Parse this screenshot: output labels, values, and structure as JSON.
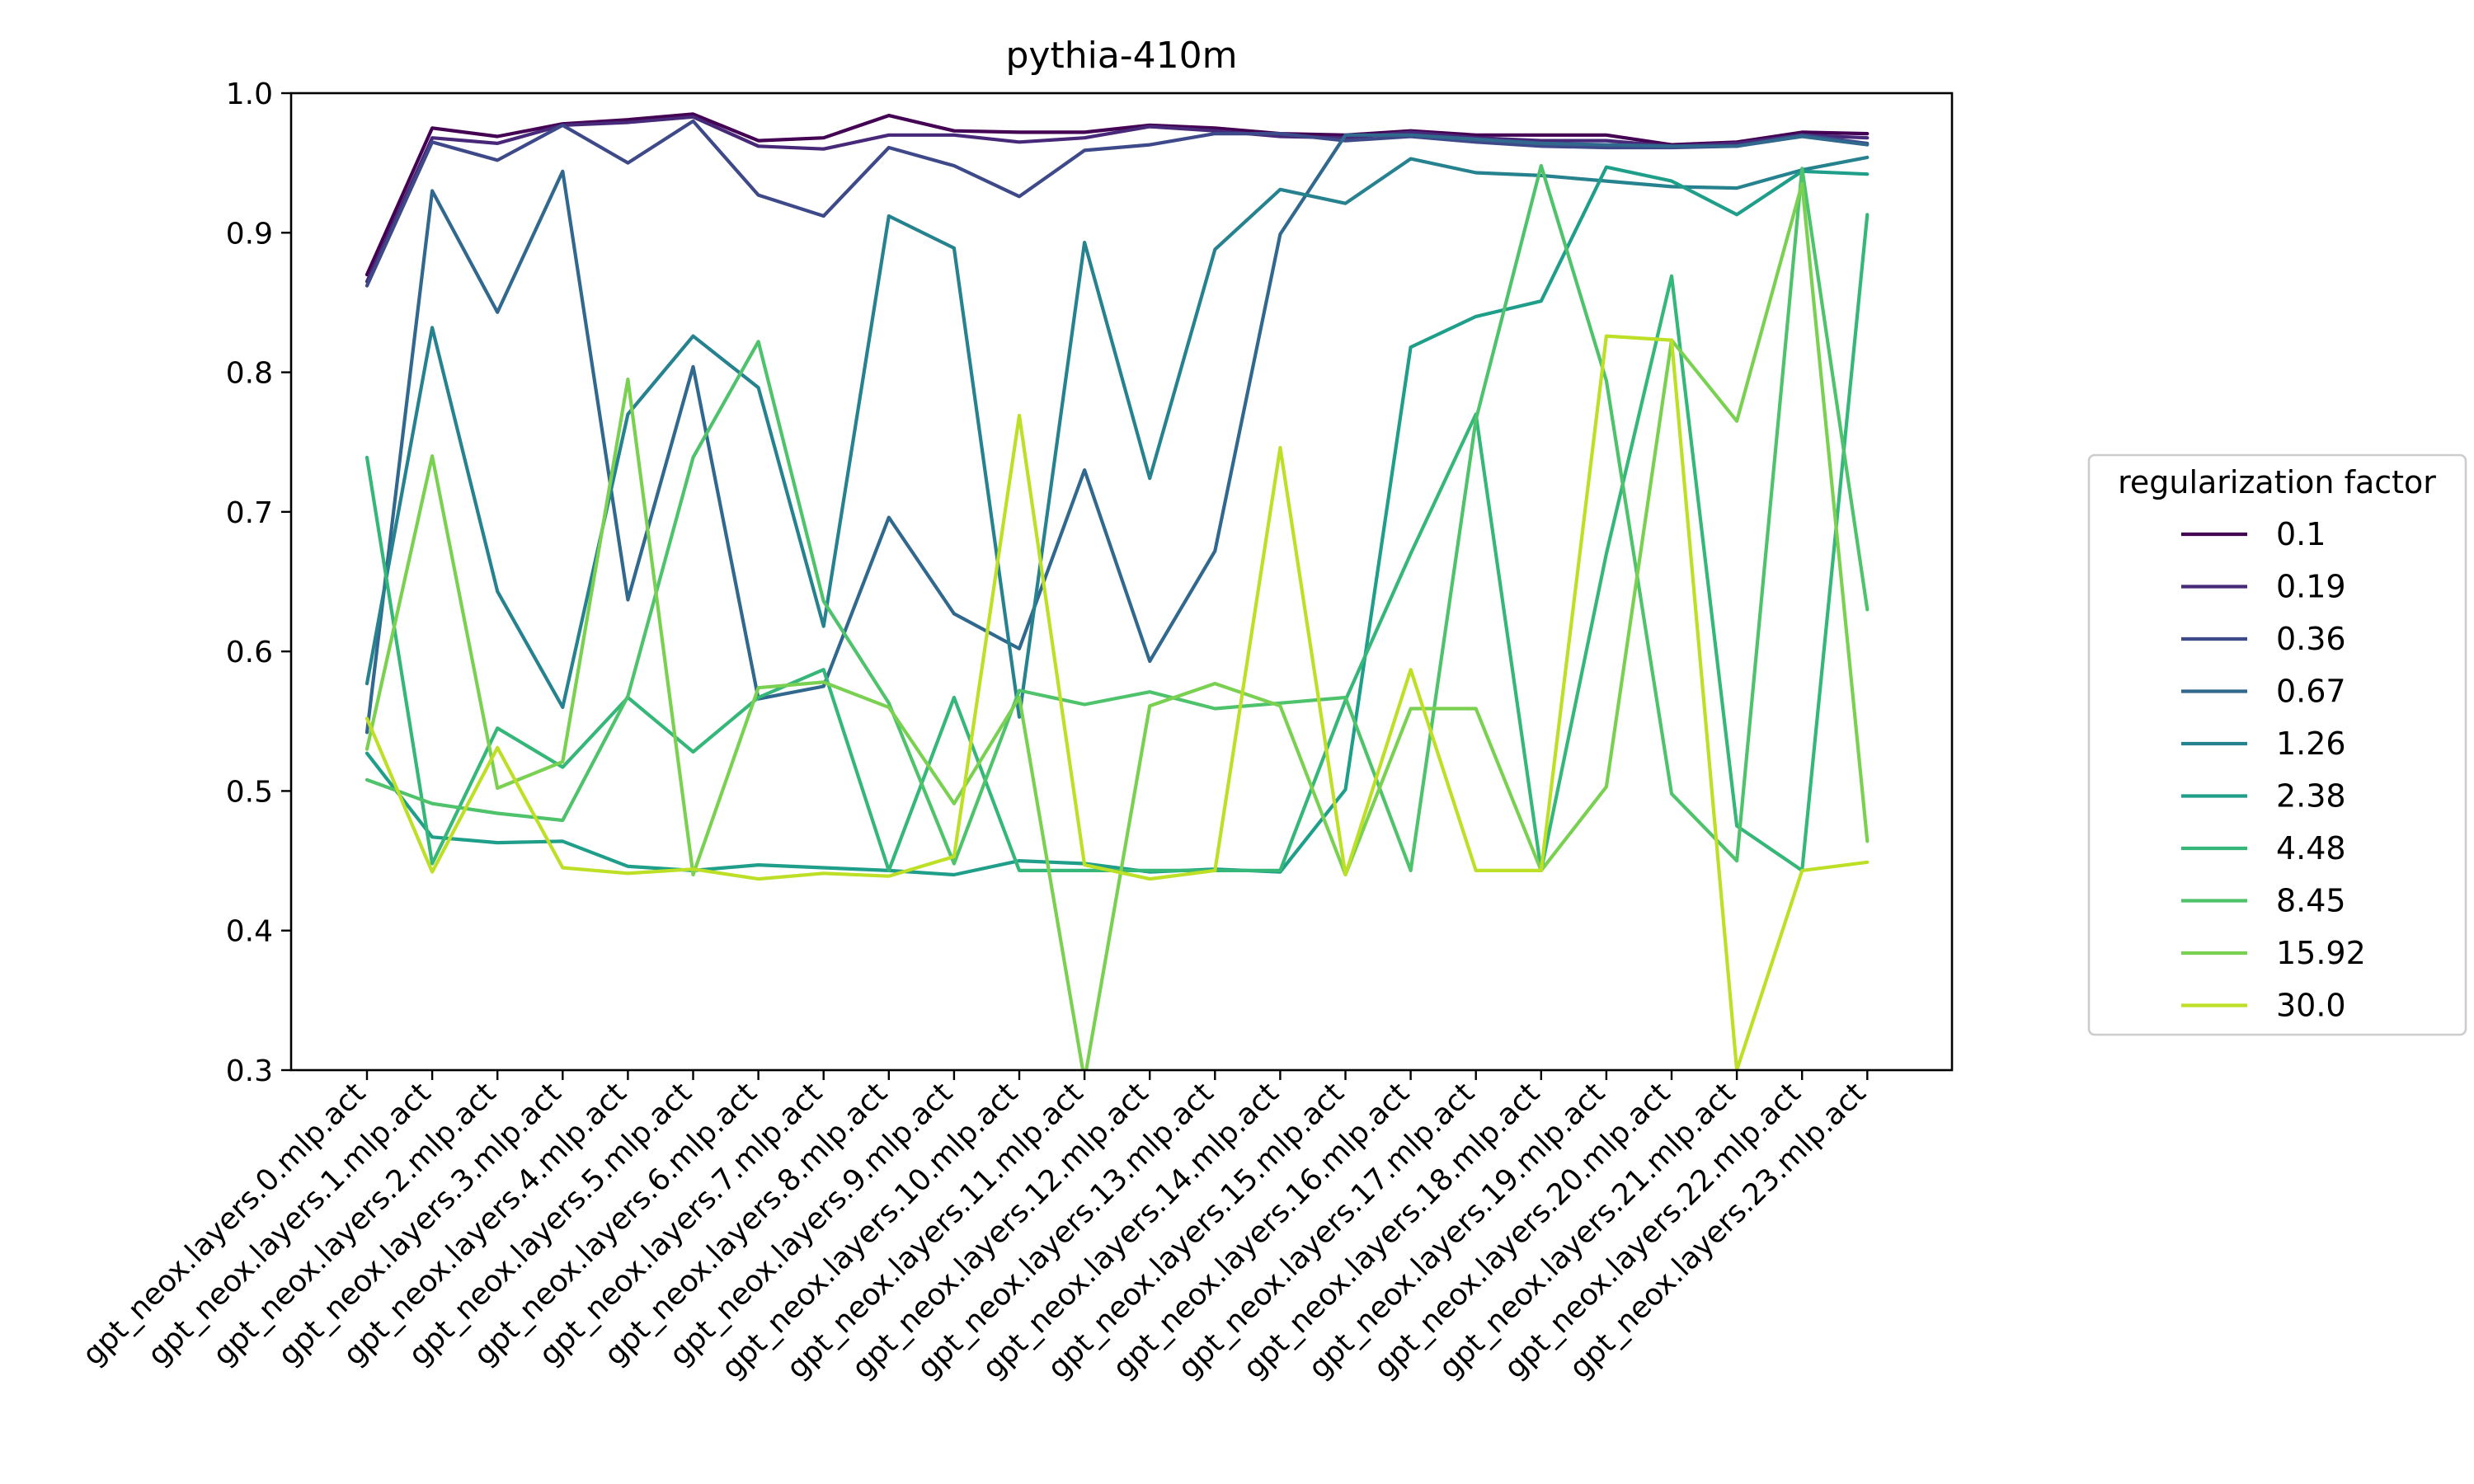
{
  "chart_data": {
    "type": "line",
    "title": "pythia-410m",
    "xlabel": "",
    "ylabel": "",
    "ylim": [
      0.3,
      1.0
    ],
    "yticks": [
      "0.3",
      "0.4",
      "0.5",
      "0.6",
      "0.7",
      "0.8",
      "0.9",
      "1.0"
    ],
    "grid": false,
    "legend": {
      "title": "regularization factor",
      "placement": "right"
    },
    "categories": [
      "gpt_neox.layers.0.mlp.act",
      "gpt_neox.layers.1.mlp.act",
      "gpt_neox.layers.2.mlp.act",
      "gpt_neox.layers.3.mlp.act",
      "gpt_neox.layers.4.mlp.act",
      "gpt_neox.layers.5.mlp.act",
      "gpt_neox.layers.6.mlp.act",
      "gpt_neox.layers.7.mlp.act",
      "gpt_neox.layers.8.mlp.act",
      "gpt_neox.layers.9.mlp.act",
      "gpt_neox.layers.10.mlp.act",
      "gpt_neox.layers.11.mlp.act",
      "gpt_neox.layers.12.mlp.act",
      "gpt_neox.layers.13.mlp.act",
      "gpt_neox.layers.14.mlp.act",
      "gpt_neox.layers.15.mlp.act",
      "gpt_neox.layers.16.mlp.act",
      "gpt_neox.layers.17.mlp.act",
      "gpt_neox.layers.18.mlp.act",
      "gpt_neox.layers.19.mlp.act",
      "gpt_neox.layers.20.mlp.act",
      "gpt_neox.layers.21.mlp.act",
      "gpt_neox.layers.22.mlp.act",
      "gpt_neox.layers.23.mlp.act"
    ],
    "series": [
      {
        "name": "0.1",
        "color": "#440154",
        "values": [
          0.87,
          0.975,
          0.969,
          0.978,
          0.981,
          0.985,
          0.966,
          0.968,
          0.984,
          0.973,
          0.972,
          0.972,
          0.977,
          0.975,
          0.971,
          0.97,
          0.973,
          0.97,
          0.97,
          0.97,
          0.963,
          0.965,
          0.972,
          0.971
        ]
      },
      {
        "name": "0.19",
        "color": "#482878",
        "values": [
          0.865,
          0.968,
          0.964,
          0.977,
          0.979,
          0.983,
          0.962,
          0.96,
          0.97,
          0.97,
          0.965,
          0.968,
          0.976,
          0.973,
          0.969,
          0.968,
          0.972,
          0.968,
          0.966,
          0.966,
          0.962,
          0.964,
          0.97,
          0.968
        ]
      },
      {
        "name": "0.36",
        "color": "#3e4989",
        "values": [
          0.862,
          0.965,
          0.952,
          0.977,
          0.95,
          0.98,
          0.927,
          0.912,
          0.961,
          0.948,
          0.926,
          0.959,
          0.963,
          0.971,
          0.971,
          0.966,
          0.969,
          0.965,
          0.962,
          0.961,
          0.961,
          0.962,
          0.97,
          0.964
        ]
      },
      {
        "name": "0.67",
        "color": "#31688e",
        "values": [
          0.542,
          0.93,
          0.843,
          0.944,
          0.637,
          0.804,
          0.566,
          0.575,
          0.696,
          0.627,
          0.602,
          0.73,
          0.593,
          0.672,
          0.899,
          0.97,
          0.97,
          0.967,
          0.964,
          0.963,
          0.962,
          0.962,
          0.969,
          0.963
        ]
      },
      {
        "name": "1.26",
        "color": "#26828e",
        "values": [
          0.577,
          0.832,
          0.643,
          0.56,
          0.77,
          0.826,
          0.789,
          0.618,
          0.912,
          0.889,
          0.553,
          0.893,
          0.724,
          0.888,
          0.931,
          0.921,
          0.953,
          0.943,
          0.941,
          0.937,
          0.933,
          0.932,
          0.945,
          0.954
        ]
      },
      {
        "name": "2.38",
        "color": "#1f9e89",
        "values": [
          0.527,
          0.467,
          0.463,
          0.464,
          0.446,
          0.443,
          0.447,
          0.445,
          0.443,
          0.44,
          0.45,
          0.448,
          0.442,
          0.444,
          0.442,
          0.501,
          0.818,
          0.84,
          0.851,
          0.947,
          0.937,
          0.913,
          0.944,
          0.942
        ]
      },
      {
        "name": "4.48",
        "color": "#35b779",
        "values": [
          0.739,
          0.448,
          0.545,
          0.517,
          0.567,
          0.528,
          0.567,
          0.587,
          0.443,
          0.567,
          0.443,
          0.443,
          0.443,
          0.443,
          0.443,
          0.565,
          0.67,
          0.77,
          0.443,
          0.67,
          0.869,
          0.475,
          0.443,
          0.913
        ]
      },
      {
        "name": "8.45",
        "color": "#4ec36b",
        "values": [
          0.508,
          0.491,
          0.484,
          0.479,
          0.568,
          0.739,
          0.822,
          0.636,
          0.563,
          0.448,
          0.572,
          0.562,
          0.571,
          0.559,
          0.563,
          0.567,
          0.443,
          0.766,
          0.948,
          0.794,
          0.498,
          0.45,
          0.946,
          0.63
        ]
      },
      {
        "name": "15.92",
        "color": "#7ad151",
        "values": [
          0.53,
          0.74,
          0.502,
          0.521,
          0.795,
          0.44,
          0.574,
          0.578,
          0.56,
          0.491,
          0.567,
          0.293,
          0.561,
          0.577,
          0.561,
          0.44,
          0.559,
          0.559,
          0.443,
          0.503,
          0.823,
          0.765,
          0.935,
          0.464
        ]
      },
      {
        "name": "30.0",
        "color": "#bddf26",
        "values": [
          0.552,
          0.442,
          0.531,
          0.445,
          0.441,
          0.444,
          0.437,
          0.441,
          0.439,
          0.453,
          0.769,
          0.447,
          0.437,
          0.443,
          0.746,
          0.44,
          0.587,
          0.443,
          0.443,
          0.826,
          0.823,
          0.3,
          0.443,
          0.449
        ]
      }
    ]
  }
}
